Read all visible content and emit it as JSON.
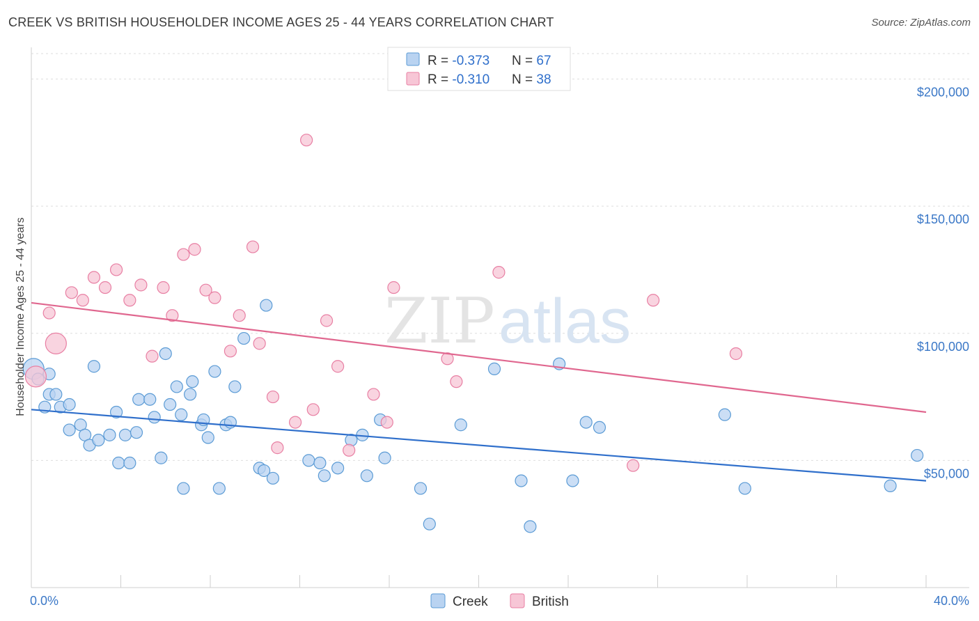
{
  "title": "CREEK VS BRITISH HOUSEHOLDER INCOME AGES 25 - 44 YEARS CORRELATION CHART",
  "source": "Source: ZipAtlas.com",
  "watermark": {
    "zip": "ZIP",
    "atlas": "atlas"
  },
  "colors": {
    "creek": "#5b9bd5",
    "creek_fill": "#b9d3f1",
    "british": "#e87fa3",
    "british_fill": "#f7c6d6",
    "creek_line": "#2f6fcb",
    "british_line": "#e0678f",
    "tick": "#3b78c7"
  },
  "chart_data": {
    "type": "scatter",
    "title": "CREEK VS BRITISH HOUSEHOLDER INCOME AGES 25 - 44 YEARS CORRELATION CHART",
    "xlabel": "",
    "ylabel": "Householder Income Ages 25 - 44 years",
    "xlim": [
      0,
      40
    ],
    "ylim": [
      0,
      210000
    ],
    "x_tick_labels": {
      "left": "0.0%",
      "right": "40.0%"
    },
    "y_ticks": [
      50000,
      100000,
      150000,
      200000
    ],
    "y_tick_labels": [
      "$50,000",
      "$100,000",
      "$150,000",
      "$200,000"
    ],
    "grid": true,
    "legend": {
      "placement": "top-center",
      "rows": [
        {
          "r_label": "R = ",
          "r_value": "-0.373",
          "n_label": "N = ",
          "n_value": "67"
        },
        {
          "r_label": "R = ",
          "r_value": "-0.310",
          "n_label": "N = ",
          "n_value": "38"
        }
      ]
    },
    "series": [
      {
        "name": "Creek",
        "trend": {
          "x": [
            0,
            40
          ],
          "y": [
            70000,
            42000
          ]
        },
        "points": [
          [
            0.1,
            86000,
            2
          ],
          [
            0.3,
            82000,
            1
          ],
          [
            0.6,
            71000,
            1
          ],
          [
            0.8,
            84000,
            1
          ],
          [
            0.8,
            76000,
            1
          ],
          [
            1.1,
            76000,
            1
          ],
          [
            1.3,
            71000,
            1
          ],
          [
            1.7,
            72000,
            1
          ],
          [
            1.7,
            62000,
            1
          ],
          [
            2.2,
            64000,
            1
          ],
          [
            2.4,
            60000,
            1
          ],
          [
            2.6,
            56000,
            1
          ],
          [
            2.8,
            87000,
            1
          ],
          [
            3.0,
            58000,
            1
          ],
          [
            3.5,
            60000,
            1
          ],
          [
            3.8,
            69000,
            1
          ],
          [
            3.9,
            49000,
            1
          ],
          [
            4.2,
            60000,
            1
          ],
          [
            4.4,
            49000,
            1
          ],
          [
            4.7,
            61000,
            1
          ],
          [
            4.8,
            74000,
            1
          ],
          [
            5.3,
            74000,
            1
          ],
          [
            5.5,
            67000,
            1
          ],
          [
            5.8,
            51000,
            1
          ],
          [
            6.0,
            92000,
            1
          ],
          [
            6.2,
            72000,
            1
          ],
          [
            6.5,
            79000,
            1
          ],
          [
            6.7,
            68000,
            1
          ],
          [
            6.8,
            39000,
            1
          ],
          [
            7.1,
            76000,
            1
          ],
          [
            7.2,
            81000,
            1
          ],
          [
            7.6,
            64000,
            1
          ],
          [
            7.7,
            66000,
            1
          ],
          [
            7.9,
            59000,
            1
          ],
          [
            8.2,
            85000,
            1
          ],
          [
            8.4,
            39000,
            1
          ],
          [
            8.7,
            64000,
            1
          ],
          [
            8.9,
            65000,
            1
          ],
          [
            9.1,
            79000,
            1
          ],
          [
            9.5,
            98000,
            1
          ],
          [
            10.2,
            47000,
            1
          ],
          [
            10.4,
            46000,
            1
          ],
          [
            10.5,
            111000,
            1
          ],
          [
            10.8,
            43000,
            1
          ],
          [
            12.4,
            50000,
            1
          ],
          [
            12.9,
            49000,
            1
          ],
          [
            13.1,
            44000,
            1
          ],
          [
            13.7,
            47000,
            1
          ],
          [
            14.3,
            58000,
            1
          ],
          [
            14.8,
            60000,
            1
          ],
          [
            15.0,
            44000,
            1
          ],
          [
            15.6,
            66000,
            1
          ],
          [
            15.8,
            51000,
            1
          ],
          [
            17.4,
            39000,
            1
          ],
          [
            17.8,
            25000,
            1
          ],
          [
            19.2,
            64000,
            1
          ],
          [
            20.7,
            86000,
            1
          ],
          [
            21.9,
            42000,
            1
          ],
          [
            22.3,
            24000,
            1
          ],
          [
            23.6,
            88000,
            1
          ],
          [
            24.2,
            42000,
            1
          ],
          [
            24.8,
            65000,
            1
          ],
          [
            25.4,
            63000,
            1
          ],
          [
            31.0,
            68000,
            1
          ],
          [
            31.9,
            39000,
            1
          ],
          [
            38.4,
            40000,
            1
          ],
          [
            39.6,
            52000,
            1
          ]
        ]
      },
      {
        "name": "British",
        "trend": {
          "x": [
            0,
            40
          ],
          "y": [
            112000,
            69000
          ]
        },
        "points": [
          [
            0.2,
            83000,
            2
          ],
          [
            0.8,
            108000,
            1
          ],
          [
            1.1,
            96000,
            2
          ],
          [
            1.8,
            116000,
            1
          ],
          [
            2.3,
            113000,
            1
          ],
          [
            2.8,
            122000,
            1
          ],
          [
            3.3,
            118000,
            1
          ],
          [
            3.8,
            125000,
            1
          ],
          [
            4.4,
            113000,
            1
          ],
          [
            4.9,
            119000,
            1
          ],
          [
            5.4,
            91000,
            1
          ],
          [
            5.9,
            118000,
            1
          ],
          [
            6.3,
            107000,
            1
          ],
          [
            6.8,
            131000,
            1
          ],
          [
            7.3,
            133000,
            1
          ],
          [
            7.8,
            117000,
            1
          ],
          [
            8.2,
            114000,
            1
          ],
          [
            8.9,
            93000,
            1
          ],
          [
            9.3,
            107000,
            1
          ],
          [
            9.9,
            134000,
            1
          ],
          [
            10.2,
            96000,
            1
          ],
          [
            10.8,
            75000,
            1
          ],
          [
            11.0,
            55000,
            1
          ],
          [
            11.8,
            65000,
            1
          ],
          [
            12.3,
            176000,
            1
          ],
          [
            12.6,
            70000,
            1
          ],
          [
            13.2,
            105000,
            1
          ],
          [
            13.7,
            87000,
            1
          ],
          [
            14.2,
            54000,
            1
          ],
          [
            15.3,
            76000,
            1
          ],
          [
            15.9,
            65000,
            1
          ],
          [
            16.2,
            118000,
            1
          ],
          [
            18.6,
            90000,
            1
          ],
          [
            19.0,
            81000,
            1
          ],
          [
            20.9,
            124000,
            1
          ],
          [
            26.9,
            48000,
            1
          ],
          [
            27.8,
            113000,
            1
          ],
          [
            31.5,
            92000,
            1
          ]
        ]
      }
    ]
  },
  "bottom_legend": [
    {
      "label": "Creek"
    },
    {
      "label": "British"
    }
  ]
}
